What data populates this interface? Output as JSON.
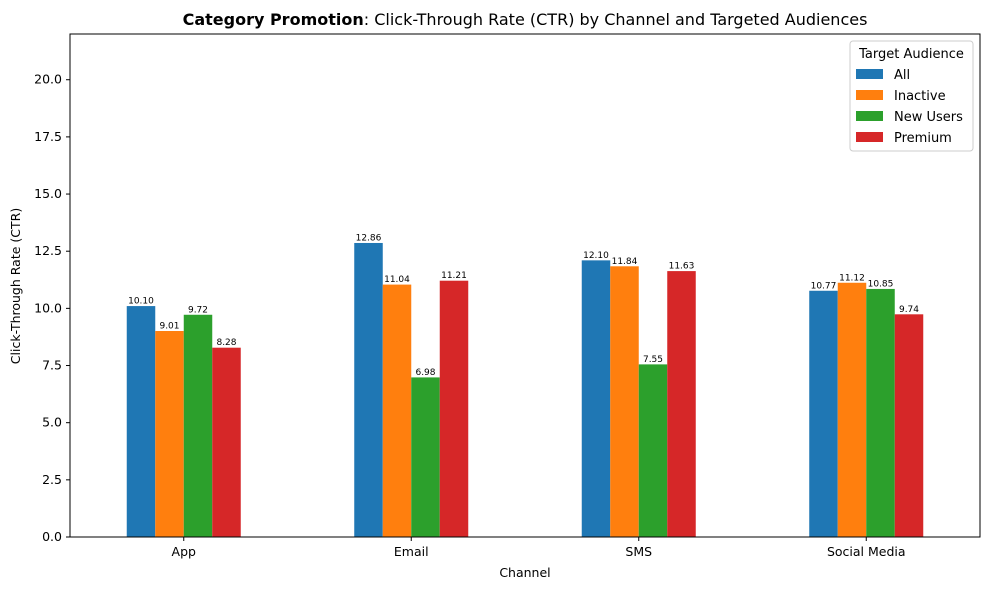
{
  "chart_data": {
    "type": "bar",
    "title_bold": "Category Promotion",
    "title_rest": ": Click-Through Rate (CTR) by Channel and Targeted Audiences",
    "xlabel": "Channel",
    "ylabel": "Click-Through Rate (CTR)",
    "categories": [
      "App",
      "Email",
      "SMS",
      "Social Media"
    ],
    "ylim": [
      0,
      22
    ],
    "yticks": [
      0.0,
      2.5,
      5.0,
      7.5,
      10.0,
      12.5,
      15.0,
      17.5,
      20.0
    ],
    "ytick_labels": [
      "0.0",
      "2.5",
      "5.0",
      "7.5",
      "10.0",
      "12.5",
      "15.0",
      "17.5",
      "20.0"
    ],
    "legend_title": "Target Audience",
    "legend_position": "top-right",
    "grid": false,
    "series": [
      {
        "name": "All",
        "color": "#1f77b4",
        "values": [
          10.1,
          12.86,
          12.1,
          10.77
        ],
        "labels": [
          "10.10",
          "12.86",
          "12.10",
          "10.77"
        ]
      },
      {
        "name": "Inactive",
        "color": "#ff7f0e",
        "values": [
          9.01,
          11.04,
          11.84,
          11.12
        ],
        "labels": [
          "9.01",
          "11.04",
          "11.84",
          "11.12"
        ]
      },
      {
        "name": "New Users",
        "color": "#2ca02c",
        "values": [
          9.72,
          6.98,
          7.55,
          10.85
        ],
        "labels": [
          "9.72",
          "6.98",
          "7.55",
          "10.85"
        ]
      },
      {
        "name": "Premium",
        "color": "#d62728",
        "values": [
          8.28,
          11.21,
          11.63,
          9.74
        ],
        "labels": [
          "8.28",
          "11.21",
          "11.63",
          "9.74"
        ]
      }
    ]
  }
}
